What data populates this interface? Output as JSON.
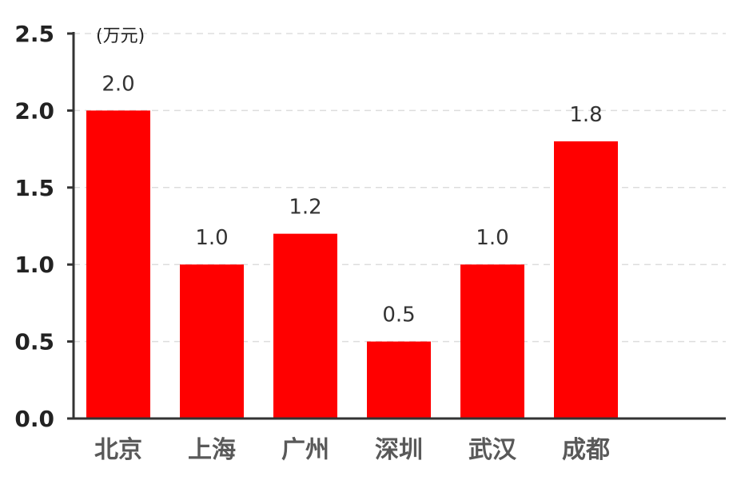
{
  "chart_data": {
    "type": "bar",
    "unit": "(万元)",
    "categories": [
      "北京",
      "上海",
      "广州",
      "深圳",
      "武汉",
      "成都"
    ],
    "values": [
      2.0,
      1.0,
      1.2,
      0.5,
      1.0,
      1.8
    ],
    "value_labels": [
      "2.0",
      "1.0",
      "1.2",
      "0.5",
      "1.0",
      "1.8"
    ],
    "ylim": [
      0,
      2.5
    ],
    "yticks": [
      0,
      0.5,
      1.0,
      1.5,
      2.0,
      2.5
    ],
    "ytick_labels": [
      "0.0",
      "0.5",
      "1.0",
      "1.5",
      "2.0",
      "2.5"
    ],
    "grid": true,
    "legend": "none",
    "bar_color": "#ff0000",
    "grid_color": "#dddddd",
    "axis_color": "#333333"
  }
}
